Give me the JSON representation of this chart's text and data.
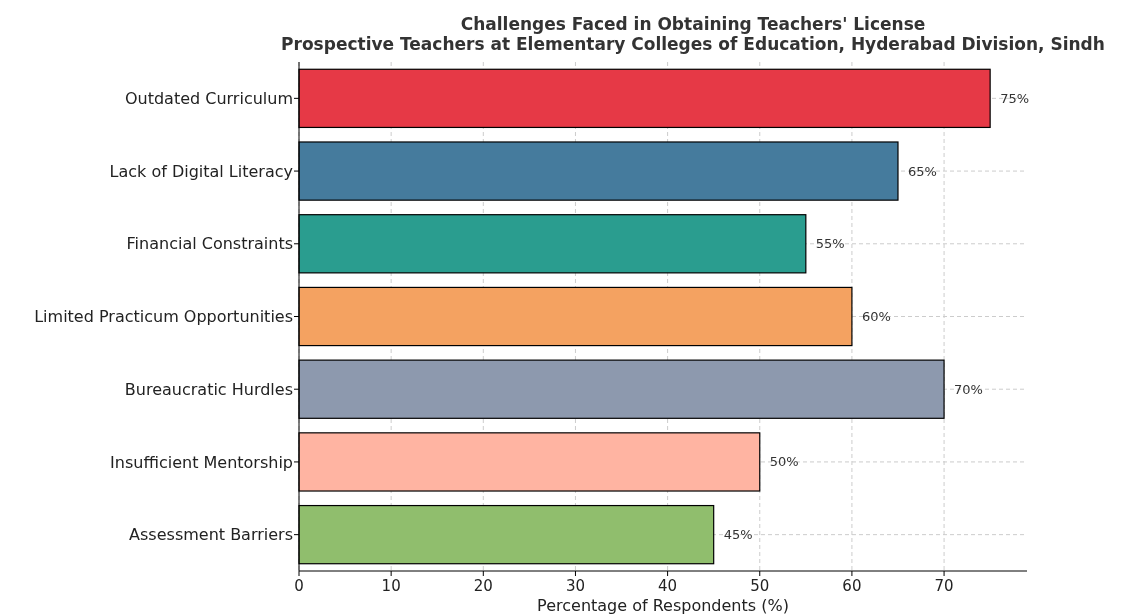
{
  "chart_data": {
    "type": "bar",
    "orientation": "horizontal",
    "title": "Challenges Faced in Obtaining Teachers' License\nProspective Teachers at Elementary Colleges of Education, Hyderabad Division, Sindh",
    "xlabel": "Percentage of Respondents (%)",
    "categories": [
      "Outdated Curriculum",
      "Lack of Digital Literacy",
      "Financial Constraints",
      "Limited Practicum Opportunities",
      "Bureaucratic Hurdles",
      "Insufficient Mentorship",
      "Assessment Barriers"
    ],
    "values": [
      75,
      65,
      55,
      60,
      70,
      50,
      45
    ],
    "colors": [
      "#e63946",
      "#457b9d",
      "#2a9d8f",
      "#f4a261",
      "#8d99ae",
      "#ffb4a2",
      "#90be6d"
    ],
    "value_labels": [
      "75%",
      "65%",
      "55%",
      "60%",
      "70%",
      "50%",
      "45%"
    ],
    "xlim": [
      0,
      79
    ],
    "xticks": [
      0,
      10,
      20,
      30,
      40,
      50,
      60,
      70
    ],
    "grid": true,
    "line_style": "dashed"
  }
}
